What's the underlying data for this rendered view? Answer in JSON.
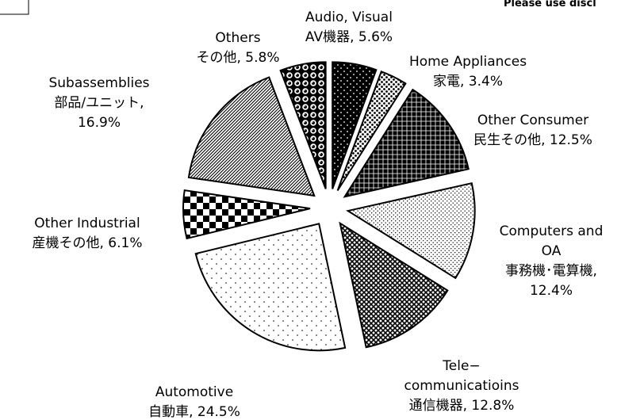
{
  "chart_data": {
    "type": "pie",
    "note": "Please use discl",
    "labels": [
      [
        "Audio, Visual",
        "AV機器, 5.6%"
      ],
      [
        "Home Appliances",
        "家電, 3.4%"
      ],
      [
        "Other Consumer",
        "民生その他, 12.5%"
      ],
      [
        "Computers and",
        "OA",
        "事務機･電算機,",
        "12.4%"
      ],
      [
        "Tele−",
        "communicatioins",
        "通信機器, 12.8%"
      ],
      [
        "Automotive",
        "自動車, 24.5%"
      ],
      [
        "Other Industrial",
        "産機その他, 6.1%"
      ],
      [
        "Subassemblies",
        "部品/ユニット,",
        "16.9%"
      ],
      [
        "Others",
        "その他, 5.8%"
      ]
    ],
    "values": [
      5.6,
      3.4,
      12.5,
      12.4,
      12.8,
      24.5,
      6.1,
      16.9,
      5.8
    ]
  }
}
